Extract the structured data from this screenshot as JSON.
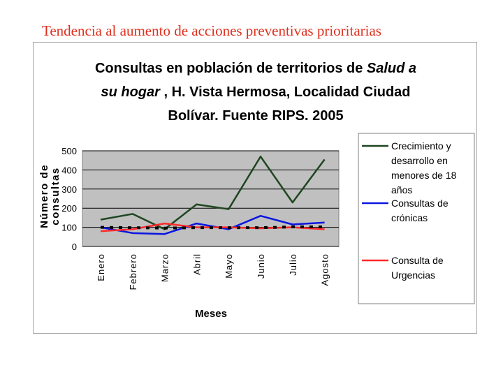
{
  "slide": {
    "title": "Tendencia al aumento de acciones preventivas prioritarias"
  },
  "chart_data": {
    "type": "line",
    "title_lines": [
      [
        {
          "text": "Consultas en población de territorios de "
        },
        {
          "text": "Salud a",
          "italic": true
        }
      ],
      [
        {
          "text": "su hogar",
          "italic": true
        },
        {
          "text": " , H. Vista Hermosa, Localidad Ciudad"
        }
      ],
      [
        {
          "text": "Bolívar. Fuente RIPS. 2005"
        }
      ]
    ],
    "xlabel": "Meses",
    "ylabel_lines": [
      "Número de",
      "consultas"
    ],
    "ylim": [
      0,
      500
    ],
    "yticks": [
      0,
      100,
      200,
      300,
      400,
      500
    ],
    "categories": [
      "Enero",
      "Febrero",
      "Marzo",
      "Abril",
      "Mayo",
      "Junio",
      "Julio",
      "Agosto"
    ],
    "grid": true,
    "plot_background": "#c0c0c0",
    "legend_position": "right",
    "series": [
      {
        "name_lines": [
          "Crecimiento y",
          "desarrollo en",
          "menores de 18",
          "años"
        ],
        "color": "#1e4620",
        "values": [
          140,
          170,
          90,
          220,
          195,
          470,
          230,
          455
        ]
      },
      {
        "name_lines": [
          "Consultas de",
          "crónicas"
        ],
        "color": "#0b16e0",
        "values": [
          100,
          70,
          65,
          120,
          90,
          160,
          115,
          125
        ]
      },
      {
        "name_lines": [
          "Consulta de",
          "Urgencias"
        ],
        "color": "#ff2a2a",
        "values": [
          80,
          90,
          120,
          100,
          100,
          95,
          100,
          90
        ]
      }
    ],
    "trendline": {
      "style": "dotted",
      "color": "#000000",
      "values": [
        100,
        98,
        96,
        98,
        98,
        98,
        102,
        102
      ]
    }
  }
}
